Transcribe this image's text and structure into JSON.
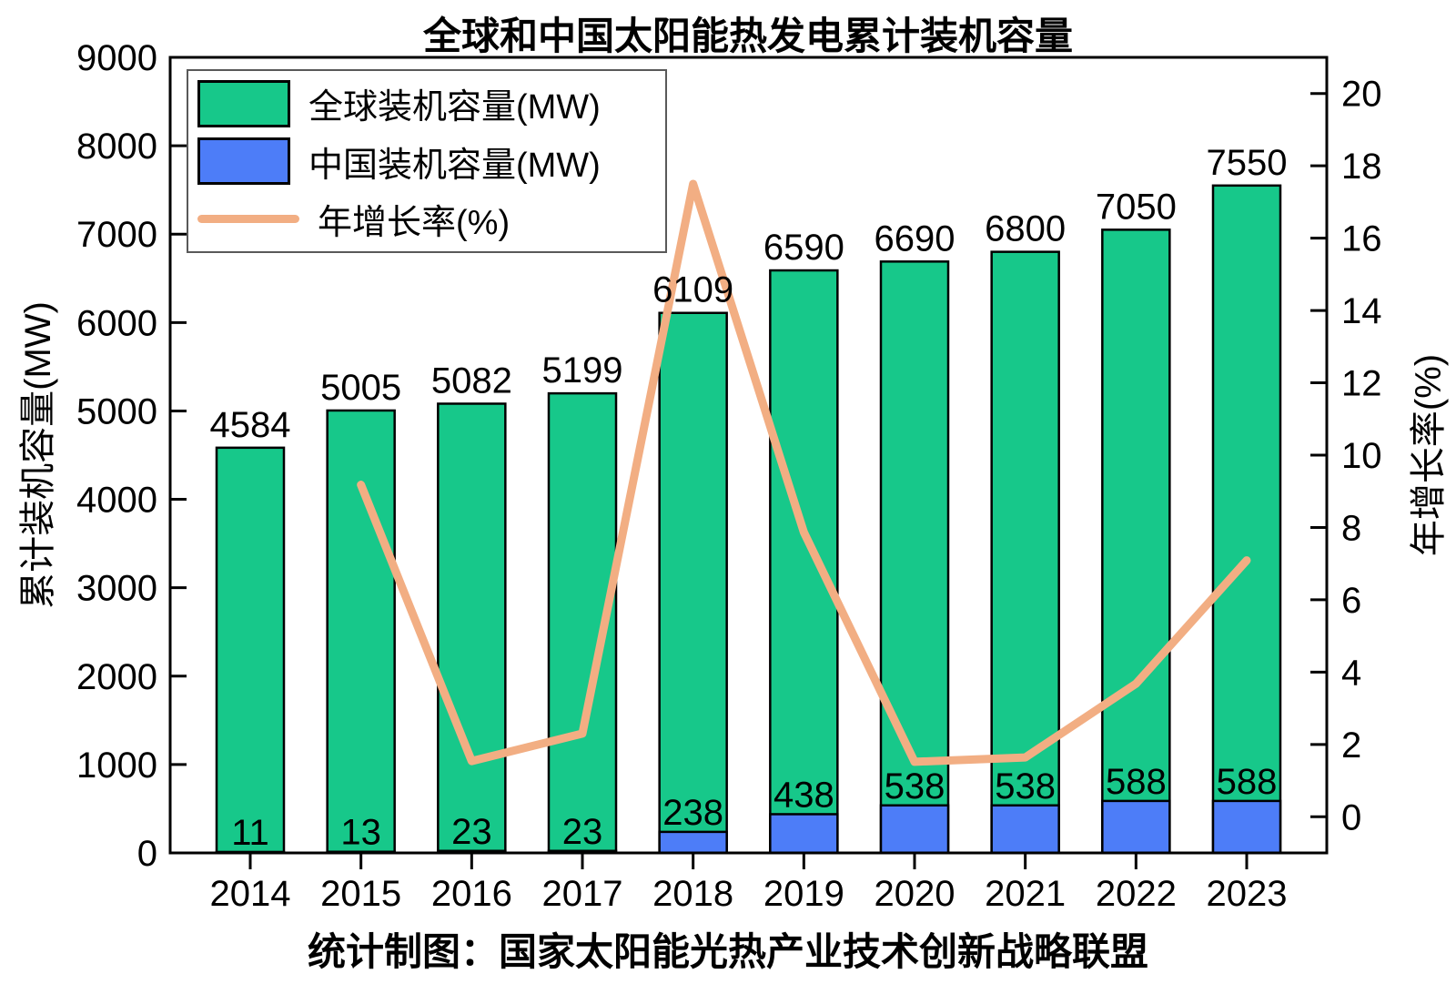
{
  "title": "全球和中国太阳能热发电累计装机容量",
  "caption": "统计制图：国家太阳能光热产业技术创新战略联盟",
  "colors": {
    "global_bar": "#17C88A",
    "china_bar": "#4D7DF8",
    "growth_line": "#F2AE83",
    "bar_border": "#000000",
    "axis": "#000000",
    "legend_border": "#595959"
  },
  "chart_data": {
    "type": "bar",
    "categories": [
      "2014",
      "2015",
      "2016",
      "2017",
      "2018",
      "2019",
      "2020",
      "2021",
      "2022",
      "2023"
    ],
    "series": [
      {
        "name": "全球装机容量(MW)",
        "type": "bar",
        "axis": "left",
        "color_key": "global_bar",
        "values": [
          4584,
          5005,
          5082,
          5199,
          6109,
          6590,
          6690,
          6800,
          7050,
          7550
        ]
      },
      {
        "name": "中国装机容量(MW)",
        "type": "bar",
        "axis": "left",
        "color_key": "china_bar",
        "values": [
          11,
          13,
          23,
          23,
          238,
          438,
          538,
          538,
          588,
          588
        ]
      },
      {
        "name": "年增长率(%)",
        "type": "line",
        "axis": "right",
        "color_key": "growth_line",
        "values": [
          null,
          9.18,
          1.54,
          2.3,
          17.5,
          7.87,
          1.52,
          1.64,
          3.68,
          7.09
        ]
      }
    ],
    "left_axis": {
      "label": "累计装机容量(MW)",
      "min": 0,
      "max": 9000,
      "tick_step": 1000,
      "tick_labels": [
        "0",
        "1000",
        "2000",
        "3000",
        "4000",
        "5000",
        "6000",
        "7000",
        "8000",
        "9000"
      ]
    },
    "right_axis": {
      "label": "年增长率(%)",
      "min": -1,
      "max": 21,
      "ticks": [
        0,
        2,
        4,
        6,
        8,
        10,
        12,
        14,
        16,
        18,
        20
      ]
    },
    "legend_position": "top-left",
    "grid": false,
    "bar_labels_shown": true
  }
}
